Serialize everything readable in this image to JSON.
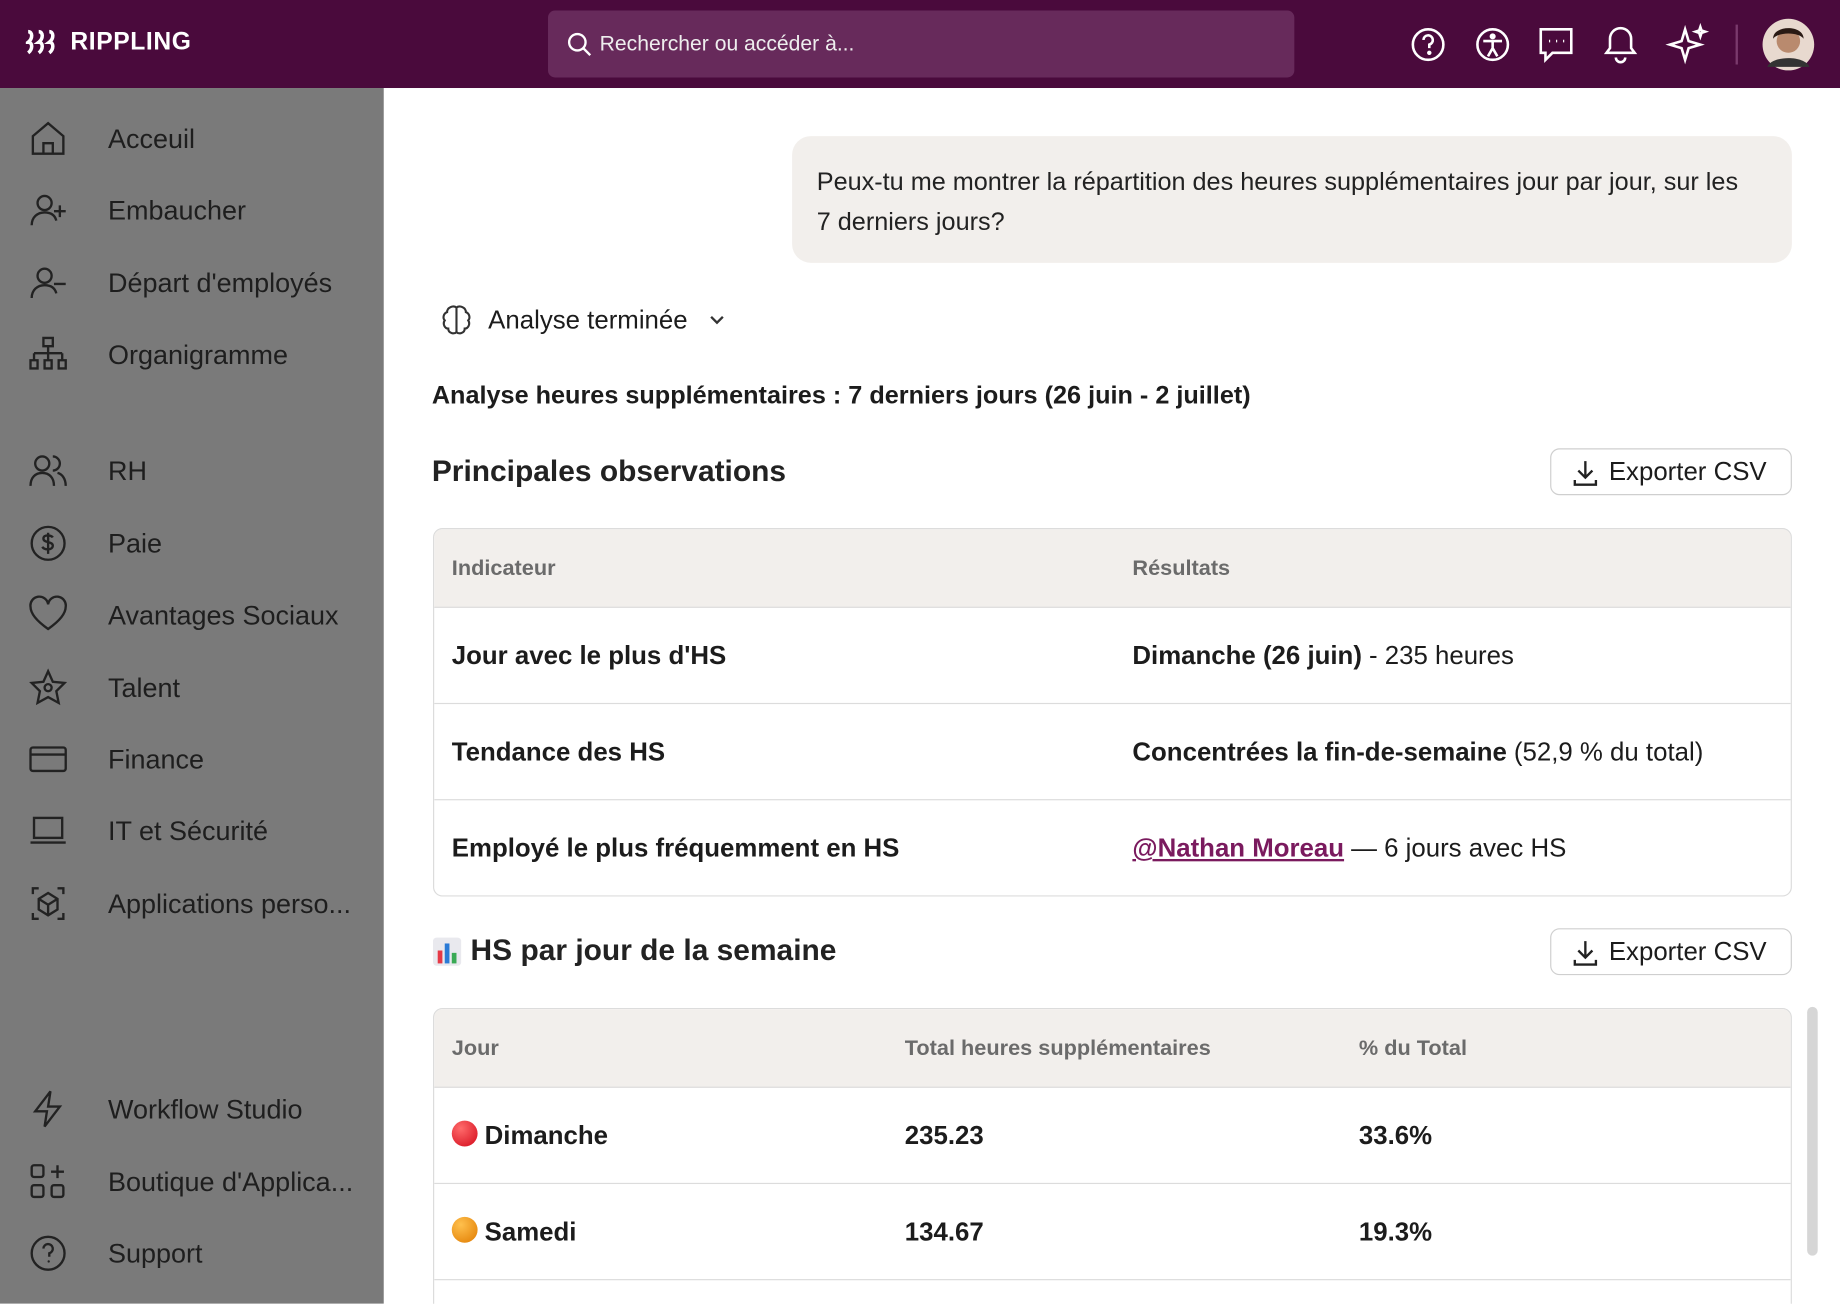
{
  "header": {
    "logo": "RIPPLING",
    "search_placeholder": "Rechercher ou accéder à..."
  },
  "sidebar": {
    "groups": [
      [
        "Acceuil",
        "Embaucher",
        "Départ d'employés",
        "Organigramme"
      ],
      [
        "RH",
        "Paie",
        "Avantages Sociaux",
        "Talent",
        "Finance",
        "IT et Sécurité",
        "Applications perso..."
      ],
      [
        "Workflow Studio",
        "Boutique d'Applica...",
        "Support"
      ]
    ]
  },
  "chat": {
    "user_message": "Peux-tu me montrer la répartition des heures supplémentaires jour par jour, sur les 7 derniers jours?",
    "status": "Analyse terminée",
    "heading": "Analyse heures supplémentaires : 7 derniers jours (26 juin - 2 juillet)"
  },
  "observations": {
    "title": "Principales observations",
    "export": "Exporter CSV",
    "columns": [
      "Indicateur",
      "Résultats"
    ],
    "rows": [
      {
        "indicator": "Jour avec le plus d'HS",
        "result_bold": "Dimanche (26 juin)",
        "result_rest": "- 235 heures"
      },
      {
        "indicator": "Tendance des HS",
        "result_bold": "Concentrées la fin-de-semaine",
        "result_rest": "(52,9 % du total)"
      },
      {
        "indicator": "Employé le plus fréquemment en HS",
        "result_link": "@Nathan Moreau",
        "result_rest": "— 6 jours avec HS"
      }
    ]
  },
  "weekday_table": {
    "title": "HS par jour de la semaine",
    "export": "Exporter CSV",
    "columns": [
      "Jour",
      "Total heures supplémentaires",
      "% du Total"
    ],
    "rows": [
      [
        "Dimanche",
        "235.23",
        "33.6%"
      ],
      [
        "Samedi",
        "134.67",
        "19.3%"
      ]
    ]
  }
}
